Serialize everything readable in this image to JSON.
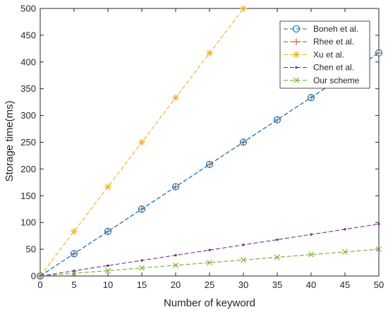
{
  "chart_data": {
    "type": "line",
    "xlabel": "Number of keyword",
    "ylabel": "Storage time(ms)",
    "xlim": [
      0,
      50
    ],
    "ylim": [
      0,
      500
    ],
    "x_ticks": [
      0,
      5,
      10,
      15,
      20,
      25,
      30,
      35,
      40,
      45,
      50
    ],
    "y_ticks": [
      0,
      50,
      100,
      150,
      200,
      250,
      300,
      350,
      400,
      450,
      500
    ],
    "grid": false,
    "legend_position": "top-right",
    "series": [
      {
        "name": "Boneh et al.",
        "color": "#0072BD",
        "marker": "circle",
        "x": [
          0,
          5,
          10,
          15,
          20,
          25,
          30,
          35,
          40,
          45,
          50
        ],
        "y": [
          0,
          41.7,
          83.4,
          125.1,
          166.8,
          208.5,
          250.2,
          291.9,
          333.6,
          375.3,
          417
        ]
      },
      {
        "name": "Rhee et al.",
        "color": "#D95319",
        "marker": "plus",
        "x": [
          0,
          5,
          10,
          15,
          20,
          25,
          30,
          35,
          40,
          45,
          50
        ],
        "y": [
          0,
          41.7,
          83.4,
          125.1,
          166.8,
          208.5,
          250.2,
          291.9,
          333.6,
          375.3,
          417
        ]
      },
      {
        "name": "Xu et al.",
        "color": "#EDB120",
        "marker": "asterisk",
        "x": [
          0,
          5,
          10,
          15,
          20,
          25,
          30
        ],
        "y": [
          0,
          83.3,
          166.6,
          249.9,
          333.2,
          416.5,
          499.8
        ]
      },
      {
        "name": "Chen et al.",
        "color": "#7E2F8E",
        "marker": "dot",
        "x": [
          0,
          5,
          10,
          15,
          20,
          25,
          30,
          35,
          40,
          45,
          50
        ],
        "y": [
          0,
          9.7,
          19.4,
          29.1,
          38.8,
          48.5,
          58.2,
          67.9,
          77.6,
          87.3,
          97
        ]
      },
      {
        "name": "Our scheme",
        "color": "#77AC30",
        "marker": "x",
        "x": [
          0,
          5,
          10,
          15,
          20,
          25,
          30,
          35,
          40,
          45,
          50
        ],
        "y": [
          0,
          5,
          10,
          15,
          20,
          25,
          30,
          35,
          40,
          45,
          50
        ]
      }
    ]
  }
}
